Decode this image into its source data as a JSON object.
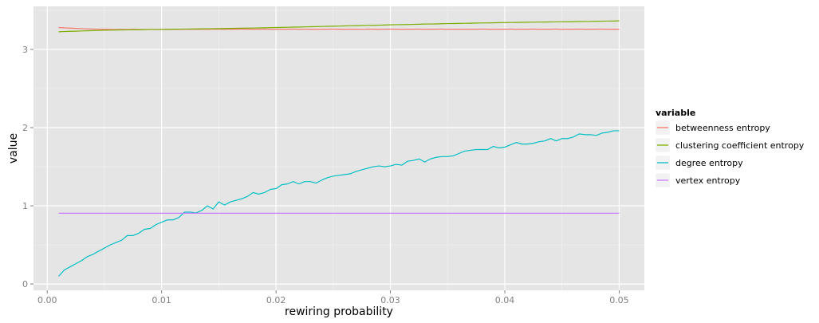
{
  "chart_data": {
    "type": "line",
    "title": "",
    "xlabel": "rewiring probability",
    "ylabel": "value",
    "xlim": [
      -0.0012,
      0.0522
    ],
    "ylim": [
      -0.08,
      3.55
    ],
    "x_ticks": [
      0.0,
      0.01,
      0.02,
      0.03,
      0.04,
      0.05
    ],
    "x_tick_labels": [
      "0.00",
      "0.01",
      "0.02",
      "0.03",
      "0.04",
      "0.05"
    ],
    "y_ticks": [
      0,
      1,
      2,
      3
    ],
    "y_tick_labels": [
      "0",
      "1",
      "2",
      "3"
    ],
    "grid": true,
    "legend_placement": "right",
    "legend": {
      "title": "variable",
      "entries": [
        {
          "label": "betweenness entropy",
          "color": "#F8766D"
        },
        {
          "label": "clustering coefficient entropy",
          "color": "#7CAE00"
        },
        {
          "label": "degree entropy",
          "color": "#00BFC4"
        },
        {
          "label": "vertex entropy",
          "color": "#C77CFF"
        }
      ]
    },
    "x": [
      0.001,
      0.0015,
      0.002,
      0.0025,
      0.003,
      0.0035,
      0.004,
      0.0045,
      0.005,
      0.0055,
      0.006,
      0.0065,
      0.007,
      0.0075,
      0.008,
      0.0085,
      0.009,
      0.0095,
      0.01,
      0.0105,
      0.011,
      0.0115,
      0.012,
      0.0125,
      0.013,
      0.0135,
      0.014,
      0.0145,
      0.015,
      0.0155,
      0.016,
      0.0165,
      0.017,
      0.0175,
      0.018,
      0.0185,
      0.019,
      0.0195,
      0.02,
      0.0205,
      0.021,
      0.0215,
      0.022,
      0.0225,
      0.023,
      0.0235,
      0.024,
      0.0245,
      0.025,
      0.0255,
      0.026,
      0.0265,
      0.027,
      0.0275,
      0.028,
      0.0285,
      0.029,
      0.0295,
      0.03,
      0.0305,
      0.031,
      0.0315,
      0.032,
      0.0325,
      0.033,
      0.0335,
      0.034,
      0.0345,
      0.035,
      0.0355,
      0.036,
      0.0365,
      0.037,
      0.0375,
      0.038,
      0.0385,
      0.039,
      0.0395,
      0.04,
      0.0405,
      0.041,
      0.0415,
      0.042,
      0.0425,
      0.043,
      0.0435,
      0.044,
      0.0445,
      0.045,
      0.0455,
      0.046,
      0.0465,
      0.047,
      0.0475,
      0.048,
      0.0485,
      0.049,
      0.0495,
      0.05
    ],
    "series": [
      {
        "name": "betweenness entropy",
        "color": "#F8766D",
        "values": [
          3.28,
          3.275,
          3.272,
          3.268,
          3.265,
          3.262,
          3.26,
          3.258,
          3.257,
          3.256,
          3.255,
          3.256,
          3.255,
          3.257,
          3.256,
          3.255,
          3.256,
          3.254,
          3.255,
          3.256,
          3.255,
          3.257,
          3.256,
          3.258,
          3.256,
          3.258,
          3.257,
          3.259,
          3.258,
          3.257,
          3.259,
          3.258,
          3.26,
          3.258,
          3.259,
          3.257,
          3.26,
          3.258,
          3.257,
          3.259,
          3.258,
          3.26,
          3.257,
          3.259,
          3.258,
          3.257,
          3.259,
          3.258,
          3.26,
          3.258,
          3.257,
          3.259,
          3.258,
          3.256,
          3.26,
          3.258,
          3.257,
          3.259,
          3.26,
          3.258,
          3.257,
          3.259,
          3.258,
          3.26,
          3.257,
          3.259,
          3.258,
          3.26,
          3.257,
          3.259,
          3.258,
          3.257,
          3.259,
          3.258,
          3.26,
          3.258,
          3.257,
          3.259,
          3.258,
          3.26,
          3.257,
          3.259,
          3.258,
          3.26,
          3.257,
          3.259,
          3.258,
          3.26,
          3.257,
          3.259,
          3.258,
          3.26,
          3.257,
          3.259,
          3.258,
          3.26,
          3.257,
          3.259,
          3.258
        ]
      },
      {
        "name": "clustering coefficient entropy",
        "color": "#7CAE00",
        "values": [
          3.225,
          3.228,
          3.231,
          3.233,
          3.236,
          3.238,
          3.24,
          3.242,
          3.245,
          3.246,
          3.248,
          3.249,
          3.25,
          3.252,
          3.252,
          3.253,
          3.255,
          3.255,
          3.256,
          3.257,
          3.258,
          3.259,
          3.26,
          3.261,
          3.262,
          3.263,
          3.264,
          3.265,
          3.266,
          3.267,
          3.268,
          3.27,
          3.271,
          3.272,
          3.273,
          3.275,
          3.276,
          3.278,
          3.28,
          3.281,
          3.283,
          3.285,
          3.286,
          3.288,
          3.29,
          3.291,
          3.293,
          3.295,
          3.296,
          3.298,
          3.3,
          3.302,
          3.303,
          3.305,
          3.307,
          3.308,
          3.31,
          3.312,
          3.314,
          3.316,
          3.317,
          3.318,
          3.32,
          3.322,
          3.324,
          3.325,
          3.326,
          3.328,
          3.33,
          3.331,
          3.332,
          3.334,
          3.335,
          3.337,
          3.338,
          3.339,
          3.34,
          3.342,
          3.343,
          3.344,
          3.345,
          3.346,
          3.347,
          3.348,
          3.349,
          3.35,
          3.351,
          3.352,
          3.353,
          3.354,
          3.355,
          3.356,
          3.357,
          3.358,
          3.36,
          3.361,
          3.362,
          3.363,
          3.365
        ]
      },
      {
        "name": "degree entropy",
        "color": "#00BFC4",
        "values": [
          0.1,
          0.18,
          0.22,
          0.26,
          0.3,
          0.35,
          0.38,
          0.42,
          0.46,
          0.5,
          0.53,
          0.56,
          0.62,
          0.62,
          0.65,
          0.7,
          0.71,
          0.76,
          0.79,
          0.82,
          0.82,
          0.85,
          0.92,
          0.92,
          0.91,
          0.94,
          1.0,
          0.96,
          1.05,
          1.01,
          1.05,
          1.07,
          1.09,
          1.12,
          1.17,
          1.15,
          1.17,
          1.21,
          1.22,
          1.27,
          1.28,
          1.31,
          1.28,
          1.31,
          1.31,
          1.29,
          1.33,
          1.36,
          1.38,
          1.39,
          1.4,
          1.41,
          1.44,
          1.46,
          1.48,
          1.5,
          1.51,
          1.5,
          1.51,
          1.53,
          1.52,
          1.57,
          1.58,
          1.6,
          1.56,
          1.6,
          1.62,
          1.63,
          1.63,
          1.64,
          1.67,
          1.7,
          1.71,
          1.72,
          1.72,
          1.72,
          1.76,
          1.74,
          1.75,
          1.78,
          1.81,
          1.79,
          1.79,
          1.8,
          1.82,
          1.83,
          1.86,
          1.83,
          1.86,
          1.86,
          1.88,
          1.92,
          1.91,
          1.91,
          1.9,
          1.93,
          1.94,
          1.96,
          1.96
        ]
      },
      {
        "name": "vertex entropy",
        "color": "#C77CFF",
        "values": [
          0.905,
          0.905,
          0.905,
          0.905,
          0.905,
          0.905,
          0.905,
          0.905,
          0.905,
          0.905,
          0.905,
          0.905,
          0.905,
          0.905,
          0.905,
          0.905,
          0.905,
          0.905,
          0.905,
          0.905,
          0.905,
          0.905,
          0.905,
          0.905,
          0.905,
          0.905,
          0.905,
          0.905,
          0.905,
          0.905,
          0.905,
          0.905,
          0.905,
          0.905,
          0.905,
          0.905,
          0.905,
          0.905,
          0.905,
          0.905,
          0.905,
          0.905,
          0.905,
          0.905,
          0.905,
          0.905,
          0.905,
          0.905,
          0.905,
          0.905,
          0.905,
          0.905,
          0.905,
          0.905,
          0.905,
          0.905,
          0.905,
          0.905,
          0.905,
          0.905,
          0.905,
          0.905,
          0.905,
          0.905,
          0.905,
          0.905,
          0.905,
          0.905,
          0.905,
          0.905,
          0.905,
          0.905,
          0.905,
          0.905,
          0.905,
          0.905,
          0.905,
          0.905,
          0.905,
          0.905,
          0.905,
          0.905,
          0.905,
          0.905,
          0.905,
          0.905,
          0.905,
          0.905,
          0.905,
          0.905,
          0.905,
          0.905,
          0.905,
          0.905,
          0.905,
          0.905,
          0.905,
          0.905,
          0.905
        ]
      }
    ]
  }
}
